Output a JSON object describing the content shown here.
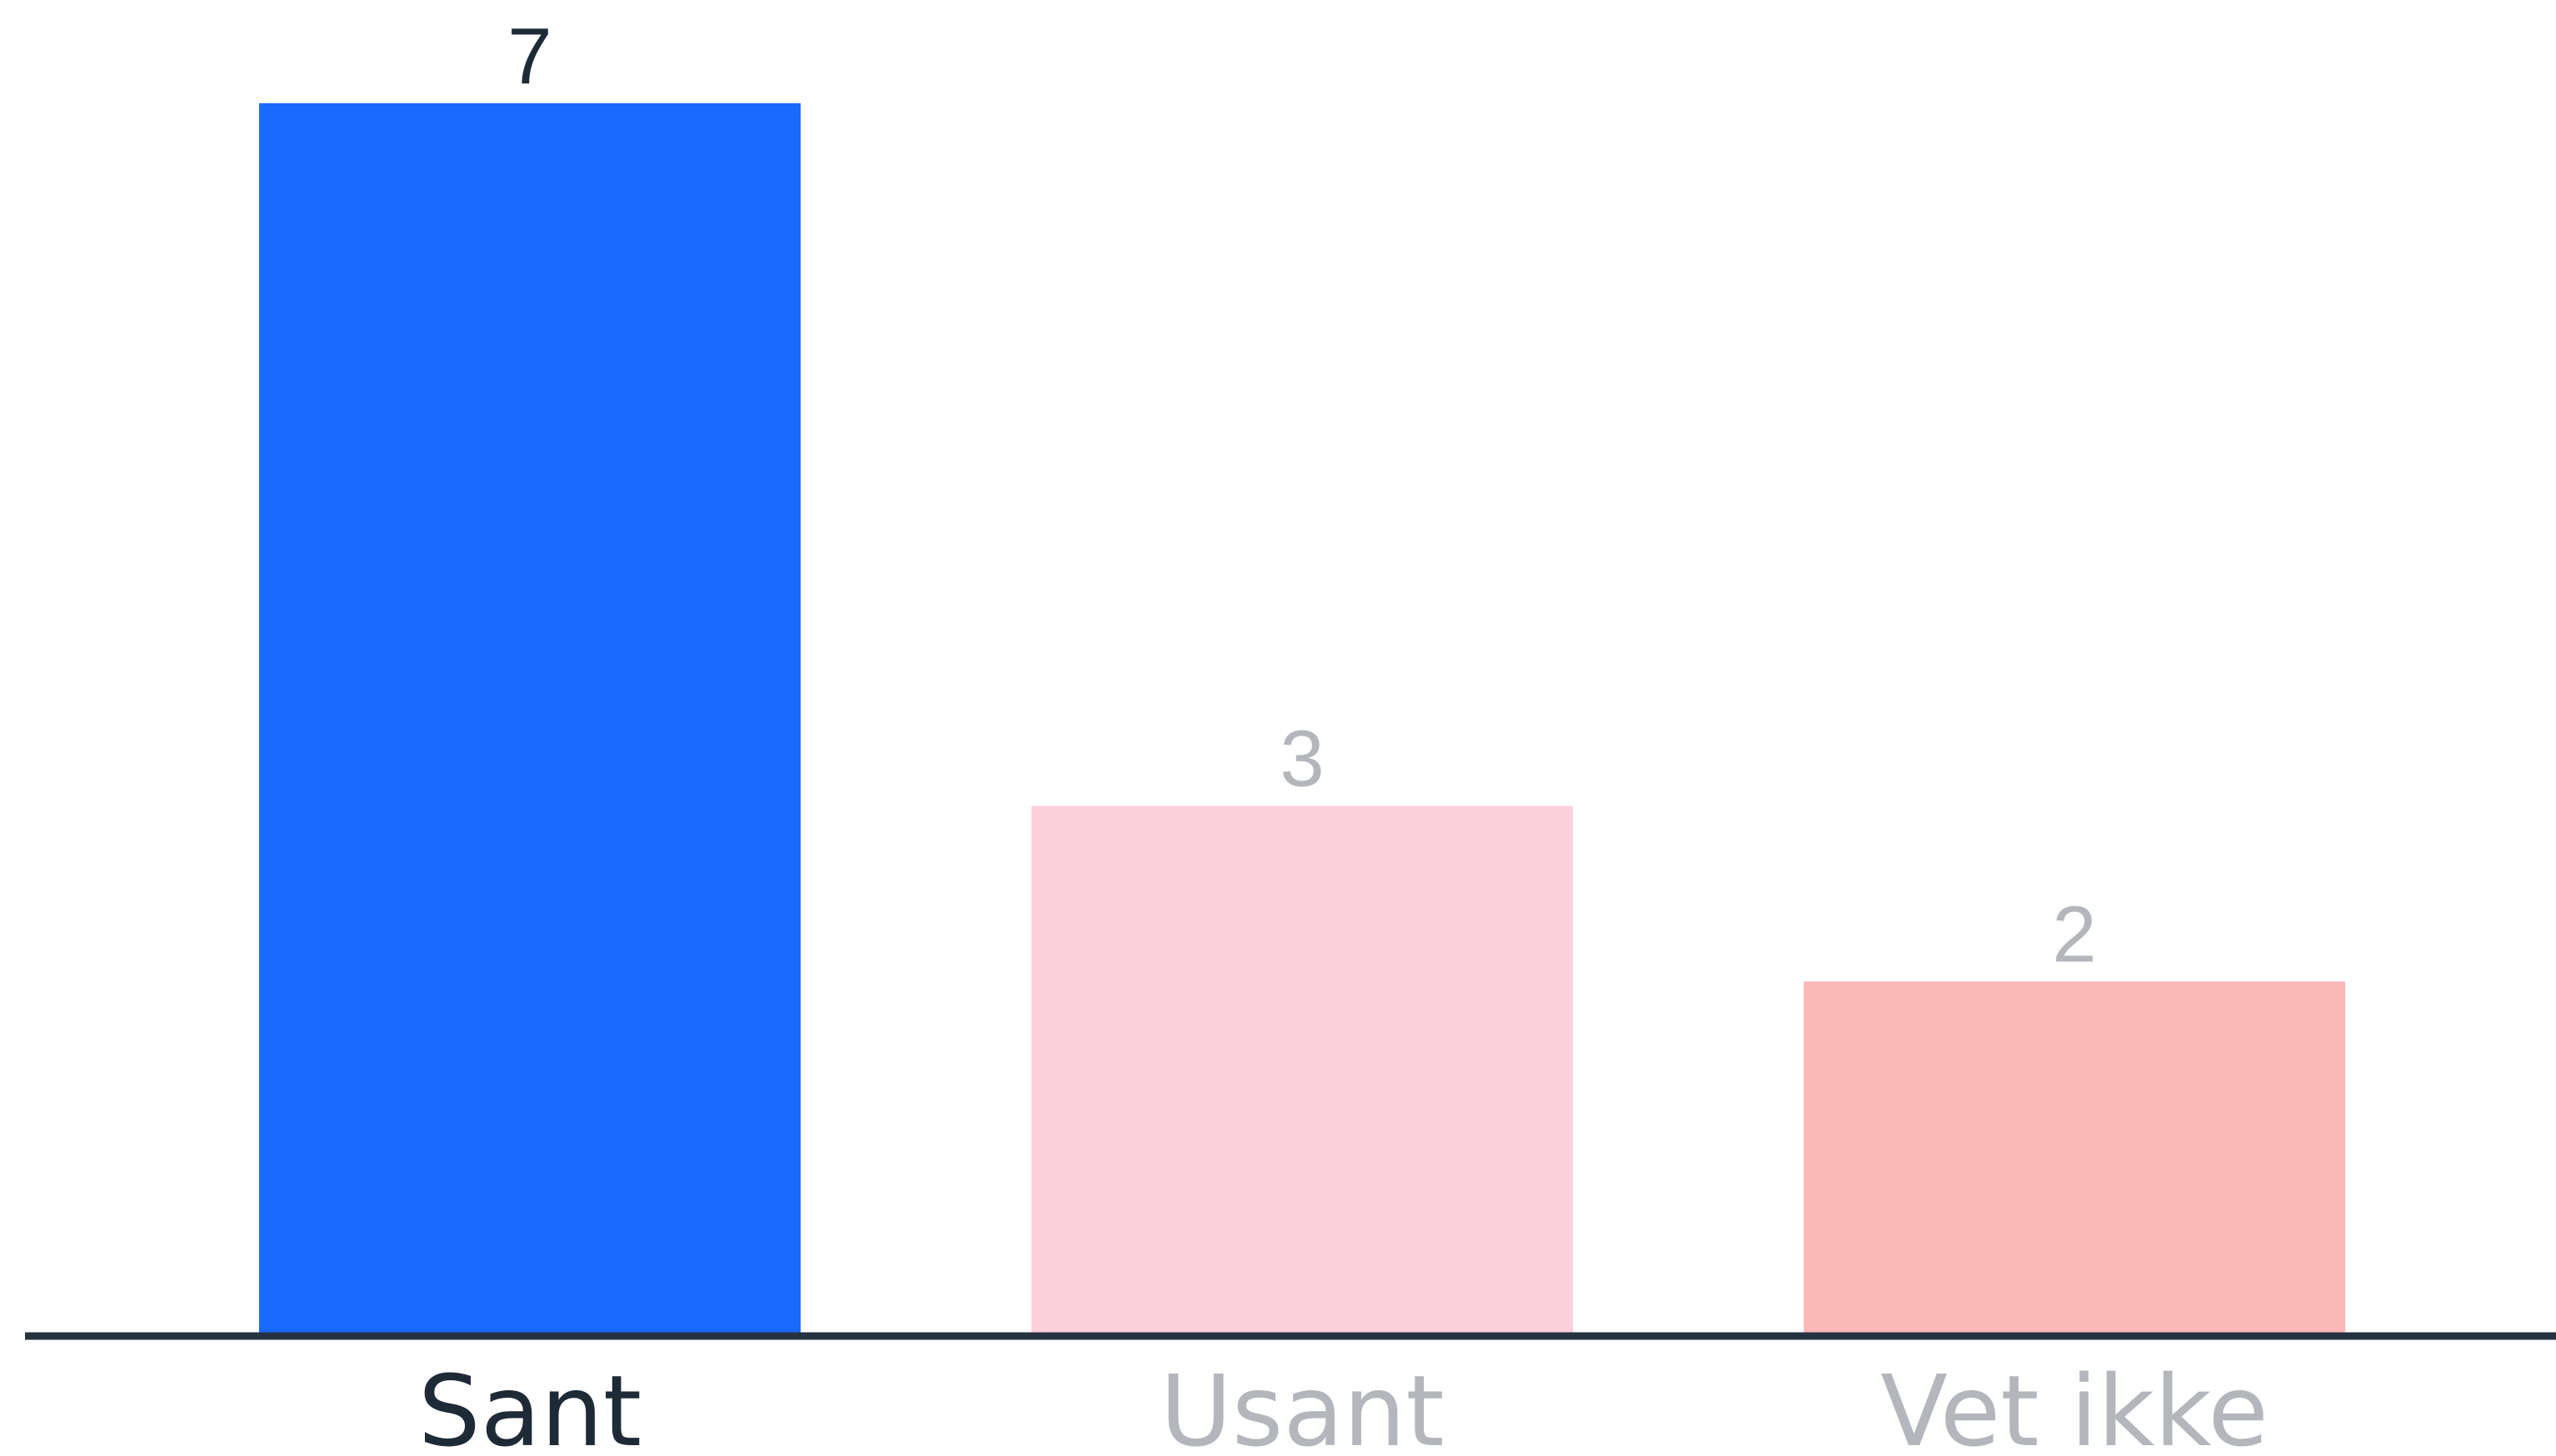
{
  "chart_data": {
    "type": "bar",
    "categories": [
      "Sant",
      "Usant",
      "Vet ikke"
    ],
    "values": [
      7,
      3,
      2
    ],
    "title": "",
    "xlabel": "",
    "ylabel": "",
    "ylim": [
      0,
      7
    ],
    "grid": false,
    "legend": "none",
    "colors": {
      "bars": [
        "#1a69ff",
        "#fcd1dd",
        "#fdb8b8"
      ],
      "labels": [
        "#1f2a37",
        "#b3b6bb",
        "#b3b6bb"
      ],
      "axis": "#263241"
    },
    "selected_index": 0
  }
}
